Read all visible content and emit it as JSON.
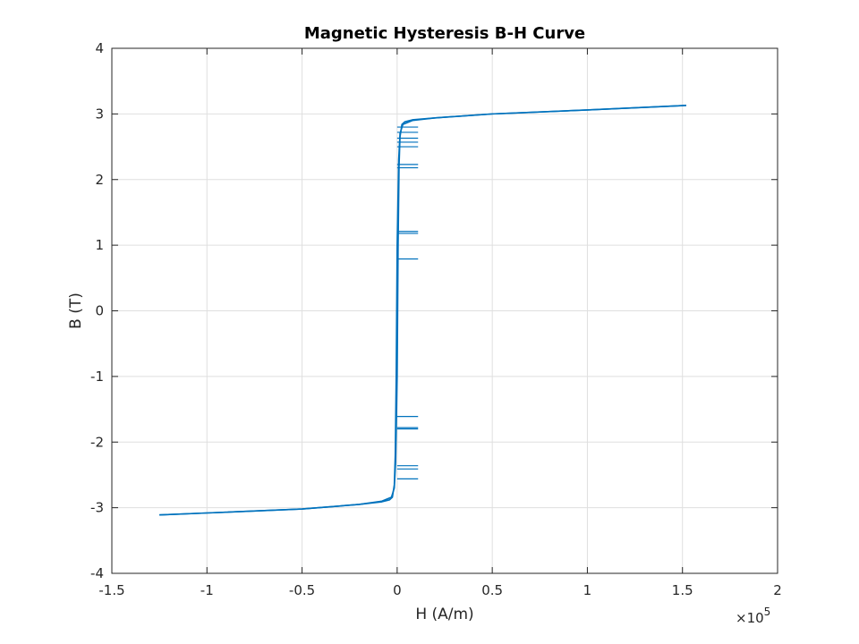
{
  "chart_data": {
    "type": "line",
    "title": "Magnetic Hysteresis B-H Curve",
    "xlabel": "H (A/m)",
    "ylabel": "B (T)",
    "x_exponent_label": "×10",
    "x_exponent_power": "5",
    "xlim": [
      -150000,
      200000
    ],
    "ylim": [
      -4,
      4
    ],
    "x_ticks": [
      -150000,
      -100000,
      -50000,
      0,
      50000,
      100000,
      150000,
      200000
    ],
    "x_tick_labels": [
      "-1.5",
      "-1",
      "-0.5",
      "0",
      "0.5",
      "1",
      "1.5",
      "2"
    ],
    "y_ticks": [
      -4,
      -3,
      -2,
      -1,
      0,
      1,
      2,
      3,
      4
    ],
    "y_tick_labels": [
      "-4",
      "-3",
      "-2",
      "-1",
      "0",
      "1",
      "2",
      "3",
      "4"
    ],
    "grid": true,
    "series": [
      {
        "color": "#0072BD",
        "upper_branch": {
          "x": [
            -125000,
            -100000,
            -50000,
            -20000,
            -8000,
            -3000,
            -1500,
            -800,
            0,
            500,
            1000,
            1500,
            2500,
            4000,
            8000,
            20000,
            50000,
            100000,
            152000
          ],
          "y": [
            -3.11,
            -3.08,
            -3.02,
            -2.95,
            -2.9,
            -2.84,
            -2.7,
            -2.3,
            -1.0,
            1.0,
            2.2,
            2.65,
            2.84,
            2.88,
            2.91,
            2.94,
            3.0,
            3.06,
            3.13
          ]
        },
        "lower_branch": {
          "x": [
            -125000,
            -100000,
            -50000,
            -20000,
            -8000,
            -4000,
            -2500,
            -1500,
            -1000,
            -500,
            0,
            800,
            1500,
            3000,
            8000,
            20000,
            50000,
            100000,
            152000
          ],
          "y": [
            -3.11,
            -3.08,
            -3.02,
            -2.95,
            -2.91,
            -2.88,
            -2.84,
            -2.65,
            -2.2,
            -1.0,
            1.0,
            2.3,
            2.7,
            2.84,
            2.9,
            2.94,
            3.0,
            3.06,
            3.13
          ]
        },
        "artifact_segments": [
          {
            "y": 2.8,
            "x": [
              0,
              11000
            ]
          },
          {
            "y": 2.72,
            "x": [
              0,
              11000
            ]
          },
          {
            "y": 2.63,
            "x": [
              0,
              11000
            ]
          },
          {
            "y": 2.57,
            "x": [
              0,
              11000
            ]
          },
          {
            "y": 2.5,
            "x": [
              0,
              11000
            ]
          },
          {
            "y": 2.23,
            "x": [
              0,
              11000
            ]
          },
          {
            "y": 2.18,
            "x": [
              0,
              11000
            ]
          },
          {
            "y": 1.21,
            "x": [
              0,
              11000
            ]
          },
          {
            "y": 1.18,
            "x": [
              0,
              11000
            ]
          },
          {
            "y": 0.79,
            "x": [
              0,
              11000
            ]
          },
          {
            "y": -1.61,
            "x": [
              0,
              11000
            ]
          },
          {
            "y": -1.78,
            "x": [
              0,
              11000
            ]
          },
          {
            "y": -1.8,
            "x": [
              0,
              11000
            ]
          },
          {
            "y": -2.36,
            "x": [
              0,
              11000
            ]
          },
          {
            "y": -2.41,
            "x": [
              0,
              11000
            ]
          },
          {
            "y": -2.56,
            "x": [
              0,
              11000
            ]
          }
        ]
      }
    ]
  }
}
